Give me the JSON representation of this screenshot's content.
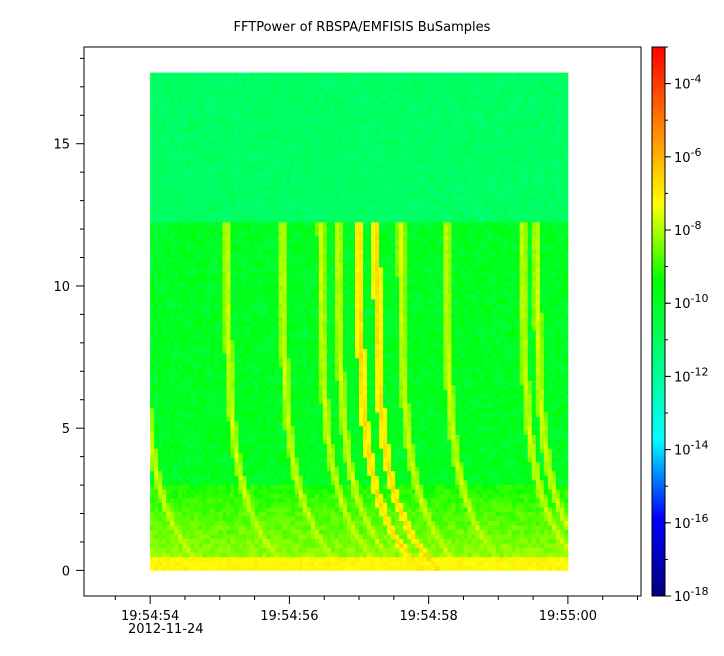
{
  "chart_data": {
    "type": "heatmap",
    "title": "FFTPower of RBSPA/EMFISIS  BuSamples",
    "xlabel": "",
    "ylabel": "",
    "x_ticks": [
      {
        "label": "19:54:54",
        "seconds": 0
      },
      {
        "label": "19:54:56",
        "seconds": 2
      },
      {
        "label": "19:54:58",
        "seconds": 4
      },
      {
        "label": "19:55:00",
        "seconds": 6
      }
    ],
    "x_date_label": "2012-11-24",
    "xlim_seconds": [
      -0.95,
      7.05
    ],
    "y_ticks": [
      0,
      5,
      10,
      15
    ],
    "ylim": [
      -0.9,
      18.4
    ],
    "data_extent": {
      "x_seconds": [
        0,
        6
      ],
      "y": [
        0,
        17.5
      ]
    },
    "colorbar": {
      "scale": "log",
      "range": [
        1e-18,
        0.001
      ],
      "ticks": [
        {
          "base": "10",
          "exp": "-4",
          "value": 0.0001
        },
        {
          "base": "10",
          "exp": "-6",
          "value": 1e-06
        },
        {
          "base": "10",
          "exp": "-8",
          "value": 1e-08
        },
        {
          "base": "10",
          "exp": "-10",
          "value": 1e-10
        },
        {
          "base": "10",
          "exp": "-12",
          "value": 1e-12
        },
        {
          "base": "10",
          "exp": "-14",
          "value": 1e-14
        },
        {
          "base": "10",
          "exp": "-16",
          "value": 1e-16
        },
        {
          "base": "10",
          "exp": "-18",
          "value": 1e-18
        }
      ],
      "colors": [
        "#000080",
        "#0000ff",
        "#00ffff",
        "#00ff7f",
        "#00ff00",
        "#ffff00",
        "#ff8000",
        "#ff0000"
      ]
    },
    "features": {
      "high_band": {
        "y": [
          12.3,
          17.5
        ],
        "level": 1e-12
      },
      "mid_band": {
        "y": [
          0,
          12.3
        ],
        "level": 1e-10
      },
      "low_band": {
        "y": [
          0,
          3
        ],
        "level": 1e-08
      },
      "chorus_bursts_seconds": [
        -0.1,
        1.1,
        1.9,
        2.45,
        2.7,
        3.0,
        3.25,
        3.6,
        4.25,
        5.35,
        5.55
      ]
    }
  }
}
